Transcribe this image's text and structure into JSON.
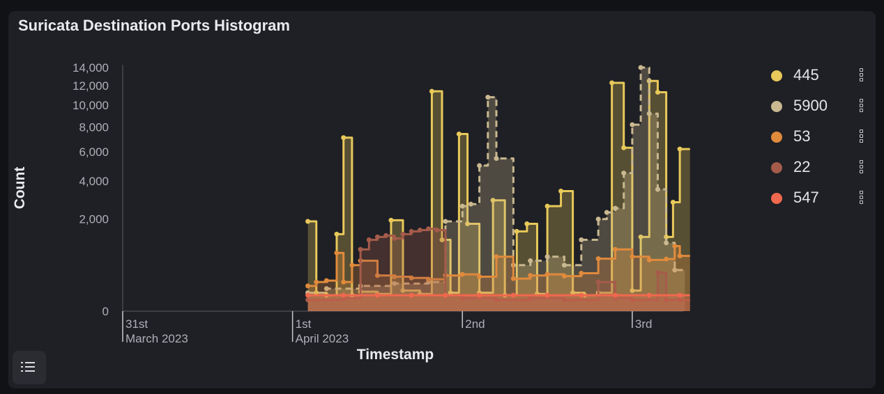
{
  "panel": {
    "title": "Suricata Destination Ports Histogram",
    "list_icon": "list-icon",
    "menu_icon": "vertical-dots-icon"
  },
  "chart_data": {
    "type": "area",
    "title": "Suricata Destination Ports Histogram",
    "xlabel": "Timestamp",
    "ylabel": "Count",
    "y_scale": "sqrt",
    "ylim": [
      0,
      14000
    ],
    "y_ticks": [
      "0",
      "2,000",
      "4,000",
      "6,000",
      "8,000",
      "10,000",
      "12,000",
      "14,000"
    ],
    "y_tick_values": [
      0,
      2000,
      4000,
      6000,
      8000,
      10000,
      12000,
      14000
    ],
    "x_ticks": [
      {
        "day": 30,
        "line1": "31st",
        "line2": "March 2023"
      },
      {
        "day": 31,
        "line1": "1st",
        "line2": "April 2023"
      },
      {
        "day": 32,
        "line1": "2nd",
        "line2": ""
      },
      {
        "day": 33,
        "line1": "3rd",
        "line2": ""
      }
    ],
    "xlim": [
      30,
      33.3
    ],
    "grid": false,
    "legend_position": "right",
    "series": [
      {
        "name": "445",
        "color": "#e8c95a",
        "dashed": false,
        "values": [
          [
            31.09,
            1900
          ],
          [
            31.14,
            80
          ],
          [
            31.2,
            60
          ],
          [
            31.26,
            1400
          ],
          [
            31.3,
            7100
          ],
          [
            31.35,
            60
          ],
          [
            31.4,
            90
          ],
          [
            31.5,
            70
          ],
          [
            31.58,
            1950
          ],
          [
            31.65,
            100
          ],
          [
            31.75,
            70
          ],
          [
            31.82,
            11400
          ],
          [
            31.88,
            1200
          ],
          [
            31.93,
            80
          ],
          [
            31.98,
            7400
          ],
          [
            32.03,
            1800
          ],
          [
            32.1,
            80
          ],
          [
            32.18,
            2900
          ],
          [
            32.25,
            60
          ],
          [
            32.32,
            1500
          ],
          [
            32.38,
            1800
          ],
          [
            32.44,
            70
          ],
          [
            32.5,
            2600
          ],
          [
            32.58,
            3400
          ],
          [
            32.65,
            80
          ],
          [
            32.72,
            60
          ],
          [
            32.8,
            80
          ],
          [
            32.88,
            12300
          ],
          [
            32.95,
            6300
          ],
          [
            33.0,
            100
          ],
          [
            33.05,
            1300
          ],
          [
            33.1,
            12500
          ],
          [
            33.15,
            11300
          ],
          [
            33.2,
            1300
          ],
          [
            33.24,
            2800
          ],
          [
            33.28,
            6200
          ]
        ]
      },
      {
        "name": "5900",
        "color": "#c9b890",
        "dashed": true,
        "values": [
          [
            31.09,
            80
          ],
          [
            31.2,
            120
          ],
          [
            31.4,
            150
          ],
          [
            31.6,
            180
          ],
          [
            31.8,
            200
          ],
          [
            31.9,
            1900
          ],
          [
            32.0,
            2600
          ],
          [
            32.05,
            2700
          ],
          [
            32.1,
            5000
          ],
          [
            32.15,
            10800
          ],
          [
            32.2,
            5500
          ],
          [
            32.3,
            500
          ],
          [
            32.4,
            600
          ],
          [
            32.5,
            700
          ],
          [
            32.6,
            500
          ],
          [
            32.7,
            1200
          ],
          [
            32.8,
            2000
          ],
          [
            32.85,
            2300
          ],
          [
            32.9,
            2500
          ],
          [
            32.95,
            4500
          ],
          [
            33.0,
            8200
          ],
          [
            33.05,
            14000
          ],
          [
            33.1,
            9200
          ],
          [
            33.15,
            3500
          ],
          [
            33.2,
            1100
          ],
          [
            33.25,
            400
          ]
        ]
      },
      {
        "name": "53",
        "color": "#e08a3c",
        "dashed": false,
        "values": [
          [
            31.09,
            150
          ],
          [
            31.14,
            200
          ],
          [
            31.2,
            220
          ],
          [
            31.26,
            800
          ],
          [
            31.3,
            200
          ],
          [
            31.35,
            500
          ],
          [
            31.4,
            600
          ],
          [
            31.5,
            300
          ],
          [
            31.6,
            280
          ],
          [
            31.7,
            260
          ],
          [
            31.8,
            240
          ],
          [
            31.9,
            300
          ],
          [
            32.0,
            320
          ],
          [
            32.1,
            280
          ],
          [
            32.2,
            700
          ],
          [
            32.3,
            250
          ],
          [
            32.4,
            300
          ],
          [
            32.5,
            320
          ],
          [
            32.6,
            290
          ],
          [
            32.7,
            340
          ],
          [
            32.8,
            650
          ],
          [
            32.9,
            900
          ],
          [
            33.0,
            700
          ],
          [
            33.1,
            620
          ],
          [
            33.2,
            640
          ],
          [
            33.25,
            1000
          ],
          [
            33.28,
            720
          ]
        ]
      },
      {
        "name": "22",
        "color": "#a55b4a",
        "dashed": false,
        "values": [
          [
            31.09,
            30
          ],
          [
            31.3,
            40
          ],
          [
            31.4,
            900
          ],
          [
            31.45,
            1200
          ],
          [
            31.5,
            1300
          ],
          [
            31.55,
            1350
          ],
          [
            31.6,
            1250
          ],
          [
            31.65,
            1400
          ],
          [
            31.7,
            1500
          ],
          [
            31.75,
            1550
          ],
          [
            31.8,
            1600
          ],
          [
            31.85,
            1550
          ],
          [
            31.9,
            60
          ],
          [
            32.0,
            40
          ],
          [
            32.2,
            30
          ],
          [
            32.4,
            40
          ],
          [
            32.6,
            30
          ],
          [
            32.8,
            200
          ],
          [
            32.9,
            40
          ],
          [
            33.0,
            30
          ],
          [
            33.15,
            350
          ],
          [
            33.2,
            30
          ],
          [
            33.28,
            30
          ]
        ]
      },
      {
        "name": "547",
        "color": "#f0684e",
        "dashed": false,
        "values": [
          [
            31.09,
            60
          ],
          [
            31.3,
            60
          ],
          [
            31.5,
            60
          ],
          [
            31.7,
            60
          ],
          [
            31.9,
            60
          ],
          [
            32.1,
            60
          ],
          [
            32.3,
            60
          ],
          [
            32.5,
            60
          ],
          [
            32.7,
            60
          ],
          [
            32.9,
            60
          ],
          [
            33.1,
            60
          ],
          [
            33.28,
            60
          ]
        ]
      }
    ]
  }
}
